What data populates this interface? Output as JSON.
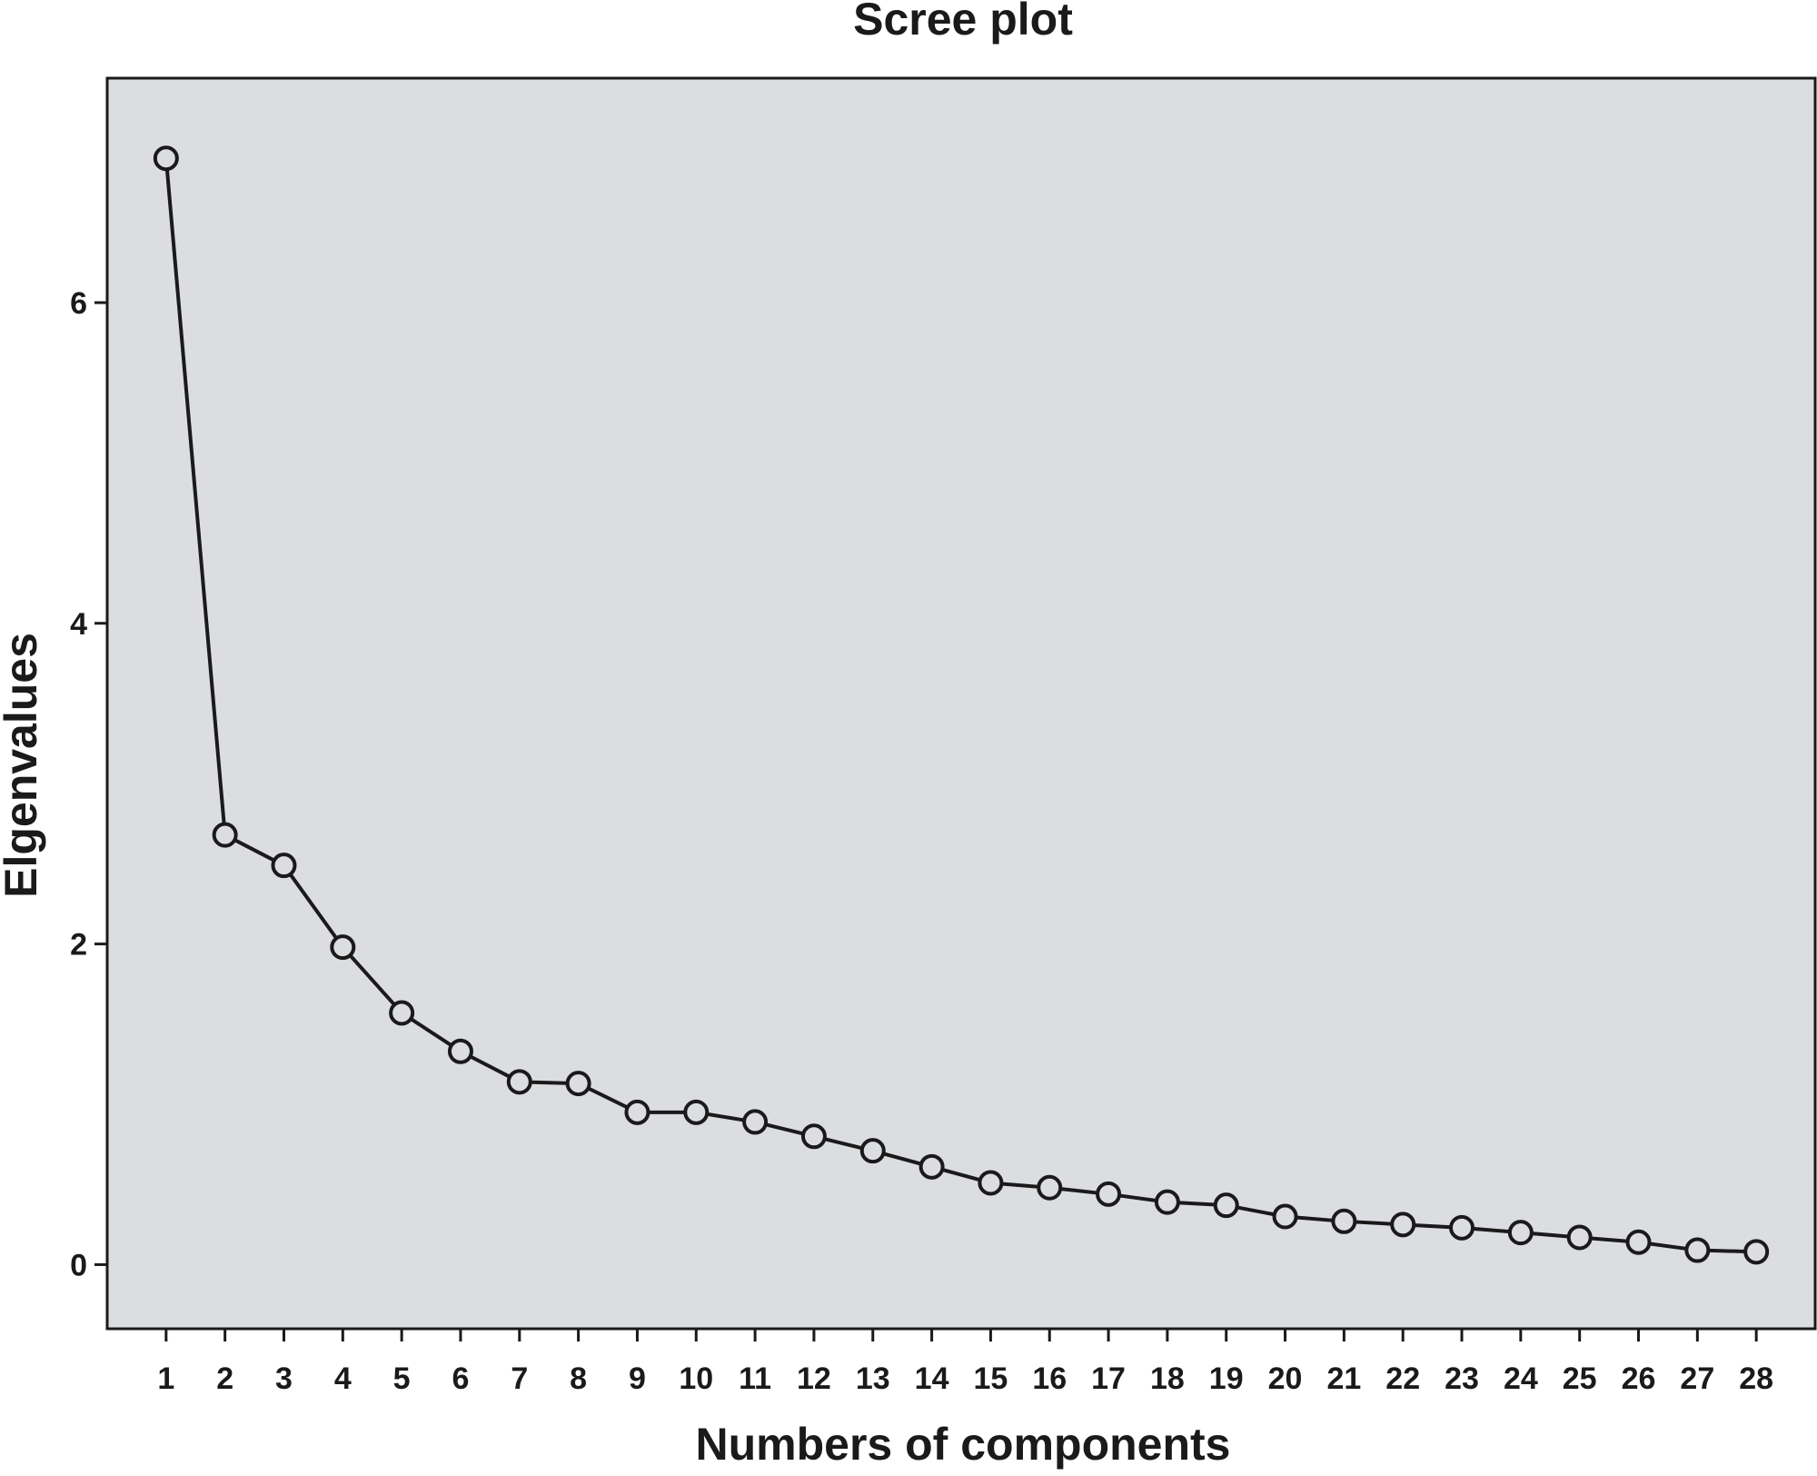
{
  "chart_data": {
    "type": "line",
    "title": "Scree plot",
    "xlabel": "Numbers of components",
    "ylabel": "Elgenvalues",
    "x": [
      1,
      2,
      3,
      4,
      5,
      6,
      7,
      8,
      9,
      10,
      11,
      12,
      13,
      14,
      15,
      16,
      17,
      18,
      19,
      20,
      21,
      22,
      23,
      24,
      25,
      26,
      27,
      28
    ],
    "x_tick_labels": [
      "1",
      "2",
      "3",
      "4",
      "5",
      "6",
      "7",
      "8",
      "9",
      "10",
      "11",
      "12",
      "13",
      "14",
      "15",
      "16",
      "17",
      "18",
      "19",
      "20",
      "21",
      "22",
      "23",
      "24",
      "25",
      "26",
      "27",
      "28"
    ],
    "y_ticks": [
      0,
      2,
      4,
      6
    ],
    "y_tick_labels": [
      "0",
      "2",
      "4",
      "6"
    ],
    "series": [
      {
        "values": [
          6.9,
          2.68,
          2.49,
          1.98,
          1.57,
          1.33,
          1.14,
          1.13,
          0.95,
          0.95,
          0.89,
          0.8,
          0.71,
          0.61,
          0.51,
          0.48,
          0.44,
          0.39,
          0.37,
          0.3,
          0.27,
          0.25,
          0.23,
          0.2,
          0.17,
          0.14,
          0.09,
          0.08
        ],
        "marker": "open-circle",
        "color": "#1a1a1a"
      }
    ],
    "xlim": [
      0,
      29
    ],
    "ylim": [
      -0.4,
      7.4
    ],
    "grid": false,
    "legend": "none",
    "plot_background": "#dcdde0",
    "line_color": "#1a1a1a"
  }
}
